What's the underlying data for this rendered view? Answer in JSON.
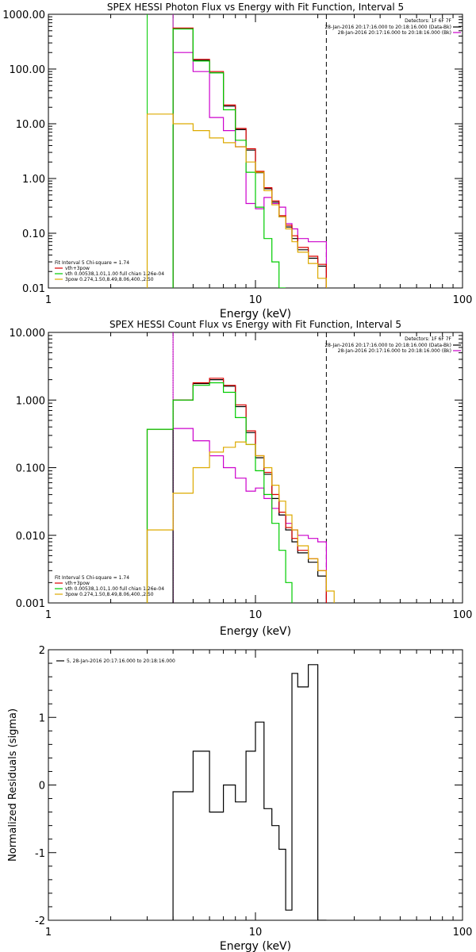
{
  "chart_data": [
    {
      "type": "line",
      "title": "SPEX HESSI Photon Flux vs Energy with Fit Function, Interval 5",
      "xlabel": "Energy (keV)",
      "ylabel": "",
      "xscale": "log",
      "yscale": "log",
      "xlim": [
        1,
        100
      ],
      "ylim": [
        0.01,
        1000
      ],
      "xticks": [
        1,
        10,
        100
      ],
      "xtick_labels": [
        "1",
        "10",
        "100"
      ],
      "yticks": [
        0.01,
        0.1,
        1,
        10,
        100,
        1000
      ],
      "ytick_labels": [
        "0.01",
        "0.10",
        "1.00",
        "10.00",
        "100.00",
        "1000.00"
      ],
      "vlines": [
        {
          "x": 3.0,
          "color": "#00cc00",
          "style": "solid"
        },
        {
          "x": 4.0,
          "color": "#00cc00",
          "style": "solid"
        },
        {
          "x": 4.0,
          "color": "#cc00cc",
          "style": "solid"
        },
        {
          "x": 22.0,
          "color": "#000000",
          "style": "dashed"
        }
      ],
      "legend_top": {
        "placement": "top-right",
        "header": "Detectors: 1F 6F 7F",
        "entries": [
          {
            "label": "28-Jan-2016 20:17:16.000 to 20:18:16.000 (Data-Bk)",
            "color": "#000000"
          },
          {
            "label": "28-Jan-2016 20:17:16.000 to 20:18:16.000 (Bk)",
            "color": "#cc00cc"
          }
        ]
      },
      "legend_bottom": {
        "placement": "bottom-left",
        "header": "Fit Interval 5   Chi-square = 1.74",
        "entries": [
          {
            "label": "vth+3pow",
            "color": "#dd0000"
          },
          {
            "label": "vth 0.00538,1.01,1.00  full chian 1.26e-04",
            "color": "#00cc00"
          },
          {
            "label": "3pow 0.274,1.50,8.49,8.06,400.,2.50",
            "color": "#ddaa00"
          }
        ]
      },
      "series": [
        {
          "color": "#cc00cc",
          "edges": [
            4.0,
            5.0,
            6.0,
            7.0,
            8.0,
            9.0,
            10.0,
            11.0,
            12.0,
            13.0,
            14.0,
            15.0,
            16.0,
            18.0,
            20.0,
            22.0
          ],
          "values": [
            200,
            90,
            13,
            7.5,
            3.8,
            0.35,
            0.28,
            0.45,
            0.35,
            0.3,
            0.15,
            0.12,
            0.08,
            0.07,
            0.07
          ]
        },
        {
          "color": "#000000",
          "edges": [
            4.0,
            5.0,
            6.0,
            7.0,
            8.0,
            9.0,
            10.0,
            11.0,
            12.0,
            13.0,
            14.0,
            15.0,
            16.0,
            18.0,
            20.0,
            22.0
          ],
          "values": [
            550,
            145,
            85,
            21,
            7.8,
            3.3,
            1.28,
            0.65,
            0.37,
            0.2,
            0.13,
            0.08,
            0.05,
            0.035,
            0.025
          ]
        },
        {
          "color": "#dd0000",
          "edges": [
            4.0,
            5.0,
            6.0,
            7.0,
            8.0,
            9.0,
            10.0,
            11.0,
            12.0,
            13.0,
            14.0,
            15.0,
            16.0,
            18.0,
            20.0,
            22.0
          ],
          "values": [
            560,
            150,
            90,
            22,
            8.2,
            3.5,
            1.35,
            0.68,
            0.39,
            0.21,
            0.14,
            0.09,
            0.055,
            0.038,
            0.027
          ]
        },
        {
          "color": "#00cc00",
          "edges": [
            4.0,
            5.0,
            6.0,
            7.0,
            8.0,
            9.0,
            10.0,
            11.0,
            12.0,
            13.0,
            14.0
          ],
          "values": [
            540,
            140,
            85,
            18,
            5.0,
            1.3,
            0.3,
            0.08,
            0.03,
            0.01
          ]
        },
        {
          "color": "#ddaa00",
          "edges": [
            3.0,
            4.0,
            5.0,
            6.0,
            7.0,
            8.0,
            9.0,
            10.0,
            11.0,
            12.0,
            13.0,
            14.0,
            15.0,
            16.0,
            18.0,
            20.0,
            22.0
          ],
          "values": [
            15,
            10,
            7.5,
            5.5,
            4.5,
            3.8,
            2.0,
            1.3,
            0.6,
            0.33,
            0.2,
            0.12,
            0.07,
            0.045,
            0.028,
            0.015
          ]
        }
      ]
    },
    {
      "type": "line",
      "title": "SPEX HESSI Count Flux vs Energy with Fit Function, Interval 5",
      "xlabel": "Energy (keV)",
      "ylabel": "",
      "xscale": "log",
      "yscale": "log",
      "xlim": [
        1,
        100
      ],
      "ylim": [
        0.001,
        10
      ],
      "xticks": [
        1,
        10,
        100
      ],
      "xtick_labels": [
        "1",
        "10",
        "100"
      ],
      "yticks": [
        0.001,
        0.01,
        0.1,
        1,
        10
      ],
      "ytick_labels": [
        "0.001",
        "0.010",
        "0.100",
        "1.000",
        "10.000"
      ],
      "vlines": [
        {
          "x": 4.0,
          "color": "#000000",
          "style": "dotted"
        },
        {
          "x": 4.0,
          "color": "#cc00cc",
          "style": "solid"
        },
        {
          "x": 22.0,
          "color": "#000000",
          "style": "dashed"
        }
      ],
      "legend_top": {
        "placement": "top-right",
        "header": "Detectors: 1F 6F 7F",
        "entries": [
          {
            "label": "28-Jan-2016 20:17:16.000 to 20:18:16.000 (Data-Bk)",
            "color": "#000000"
          },
          {
            "label": "28-Jan-2016 20:17:16.000 to 20:18:16.000 (Bk)",
            "color": "#cc00cc"
          }
        ]
      },
      "legend_bottom": {
        "placement": "bottom-left",
        "header": "Fit Interval 5   Chi-square = 1.74",
        "entries": [
          {
            "label": "vth+3pow",
            "color": "#dd0000"
          },
          {
            "label": "vth 0.00538,1.01,1.00  full chian 1.26e-04",
            "color": "#00cc00"
          },
          {
            "label": "3pow 0.274,1.50,8.49,8.06,400.,2.50",
            "color": "#ddaa00"
          }
        ]
      },
      "series": [
        {
          "color": "#cc00cc",
          "edges": [
            4.0,
            5.0,
            6.0,
            7.0,
            8.0,
            9.0,
            10.0,
            11.0,
            12.0,
            13.0,
            14.0,
            15.0,
            16.0,
            18.0,
            20.0,
            22.0
          ],
          "values": [
            0.38,
            0.25,
            0.15,
            0.1,
            0.07,
            0.045,
            0.05,
            0.035,
            0.025,
            0.02,
            0.015,
            0.012,
            0.01,
            0.009,
            0.008
          ]
        },
        {
          "color": "#000000",
          "edges": [
            4.0,
            5.0,
            6.0,
            7.0,
            8.0,
            9.0,
            10.0,
            11.0,
            12.0,
            13.0,
            14.0,
            15.0,
            16.0,
            18.0,
            20.0,
            22.0
          ],
          "values": [
            1.0,
            1.75,
            2.0,
            1.6,
            0.8,
            0.33,
            0.14,
            0.08,
            0.035,
            0.02,
            0.012,
            0.008,
            0.0055,
            0.004,
            0.0025
          ]
        },
        {
          "color": "#dd0000",
          "edges": [
            3.0,
            4.0,
            5.0,
            6.0,
            7.0,
            8.0,
            9.0,
            10.0,
            11.0,
            12.0,
            13.0,
            14.0,
            15.0,
            16.0,
            18.0,
            20.0,
            22.0
          ],
          "values": [
            0.37,
            1.0,
            1.8,
            2.1,
            1.65,
            0.85,
            0.35,
            0.15,
            0.085,
            0.04,
            0.022,
            0.013,
            0.009,
            0.006,
            0.0045,
            0.003
          ]
        },
        {
          "color": "#00cc00",
          "edges": [
            3.0,
            4.0,
            5.0,
            6.0,
            7.0,
            8.0,
            9.0,
            10.0,
            11.0,
            12.0,
            13.0,
            14.0,
            15.0
          ],
          "values": [
            0.37,
            1.0,
            1.65,
            1.8,
            1.3,
            0.55,
            0.22,
            0.09,
            0.04,
            0.015,
            0.006,
            0.002
          ]
        },
        {
          "color": "#ddaa00",
          "edges": [
            3.0,
            4.0,
            5.0,
            6.0,
            7.0,
            8.0,
            9.0,
            10.0,
            11.0,
            12.0,
            13.0,
            14.0,
            15.0,
            16.0,
            18.0,
            20.0,
            22.0,
            24.0
          ],
          "values": [
            0.012,
            0.042,
            0.1,
            0.17,
            0.2,
            0.24,
            0.22,
            0.15,
            0.1,
            0.055,
            0.032,
            0.02,
            0.012,
            0.007,
            0.0045,
            0.003,
            0.0015
          ]
        }
      ]
    },
    {
      "type": "line",
      "title": "",
      "xlabel": "Energy (keV)",
      "ylabel": "Normalized Residuals (sigma)",
      "xscale": "log",
      "yscale": "linear",
      "xlim": [
        1,
        100
      ],
      "ylim": [
        -2,
        2
      ],
      "xticks": [
        1,
        10,
        100
      ],
      "xtick_labels": [
        "1",
        "10",
        "100"
      ],
      "yticks": [
        -2,
        -1,
        0,
        1,
        2
      ],
      "ytick_labels": [
        "-2",
        "-1",
        "0",
        "1",
        "2"
      ],
      "legend_top": {
        "placement": "top-left",
        "header": "",
        "entries": [
          {
            "label": "5, 28-Jan-2016 20:17:16.000 to 20:18:16.000",
            "color": "#000000"
          }
        ]
      },
      "series": [
        {
          "color": "#000000",
          "edges": [
            4.0,
            5.0,
            6.0,
            7.0,
            8.0,
            9.0,
            10.0,
            11.0,
            12.0,
            13.0,
            14.0,
            15.0,
            16.0,
            18.0,
            20.0,
            22.0
          ],
          "values": [
            -0.1,
            0.5,
            -0.4,
            0.0,
            -0.25,
            0.5,
            0.93,
            -0.35,
            -0.6,
            -0.95,
            -1.85,
            1.65,
            1.45,
            1.78,
            -2.0
          ]
        }
      ]
    }
  ]
}
